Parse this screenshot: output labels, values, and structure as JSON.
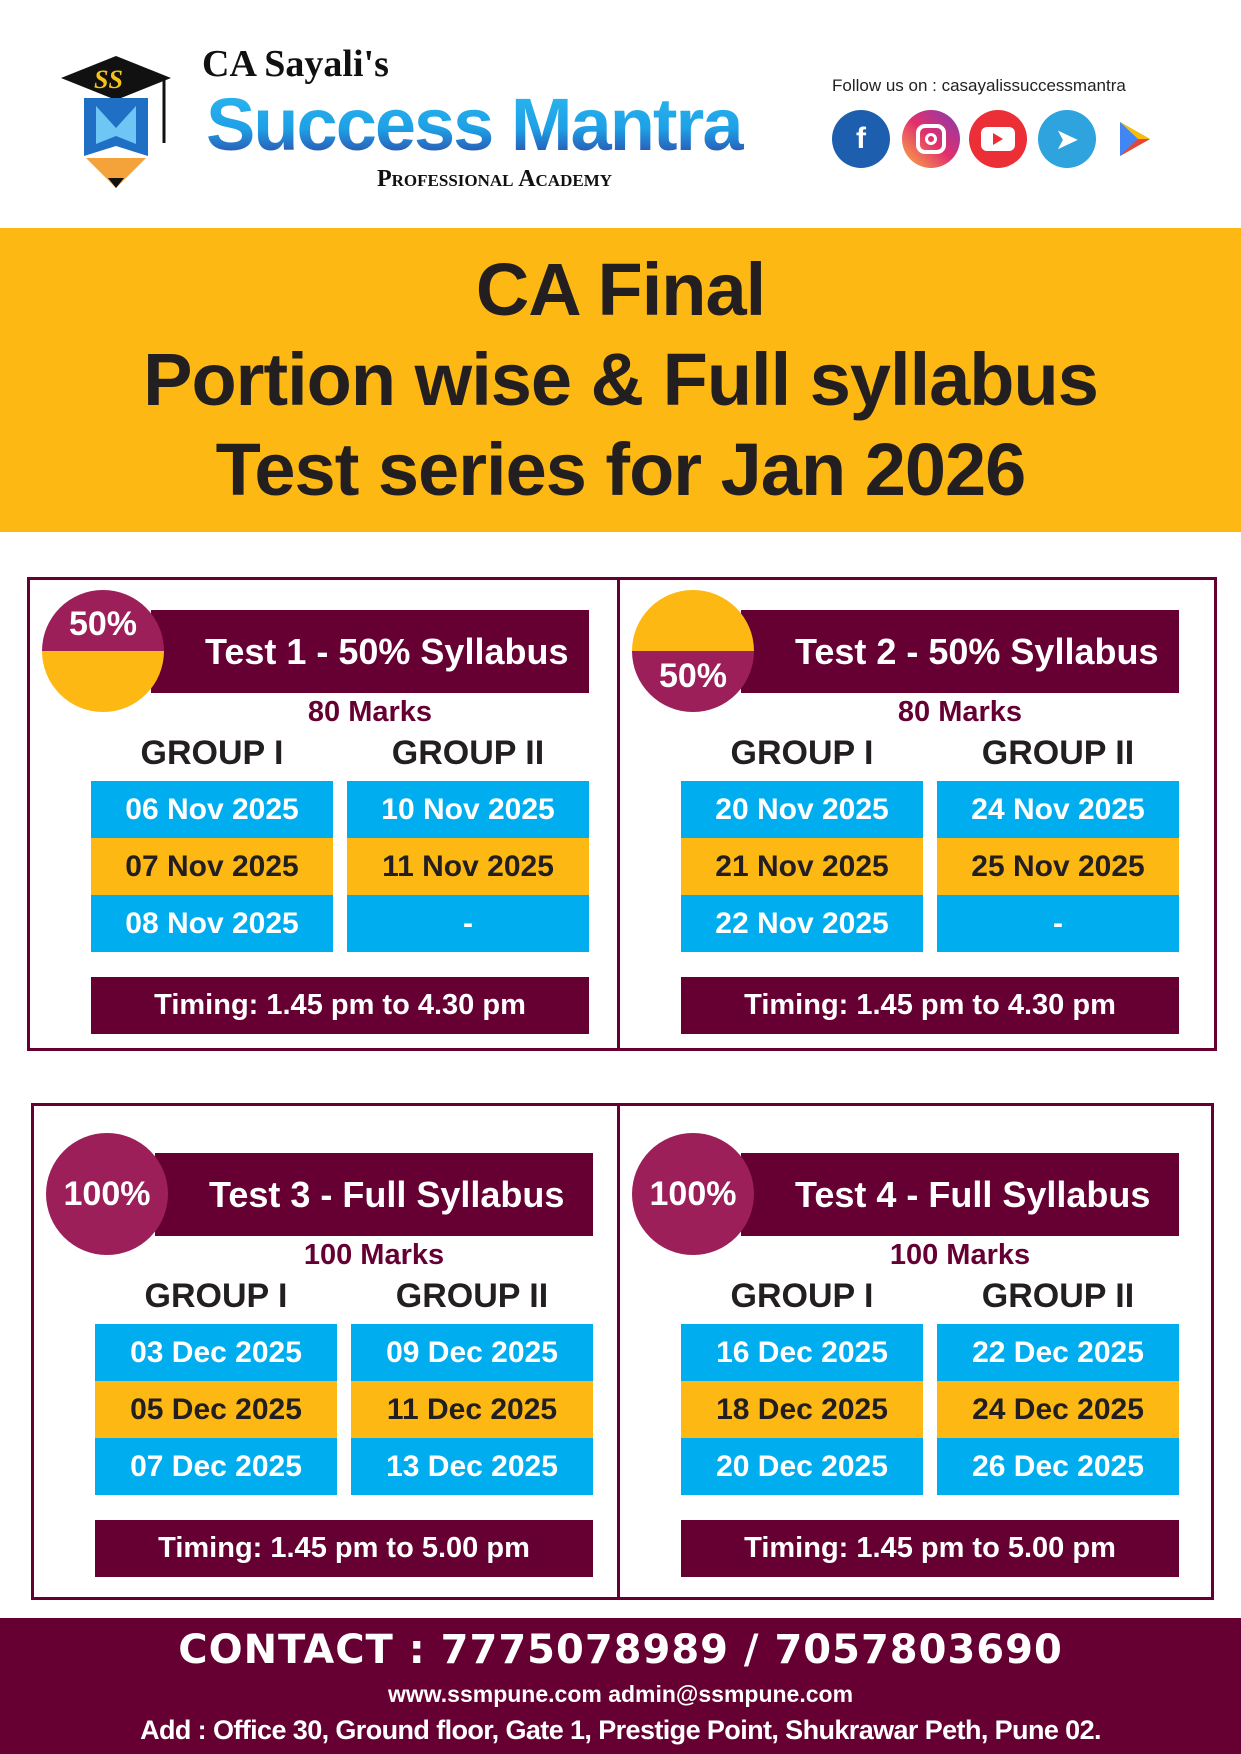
{
  "header": {
    "logo_monogram": "SS",
    "brand_prefix": "CA Sayali's",
    "brand_name": "Success Mantra",
    "brand_sub": "Professional Academy",
    "follow_text": "Follow us on : casayalissuccessmantra",
    "social_icons": [
      "facebook-icon",
      "instagram-icon",
      "youtube-icon",
      "telegram-icon",
      "play-store-icon"
    ]
  },
  "banner": {
    "line1": "CA Final",
    "line2": "Portion wise & Full syllabus",
    "line3": "Test series for Jan 2026"
  },
  "colors": {
    "maroon": "#660033",
    "magenta": "#9c1f5a",
    "yellow": "#fdb813",
    "blue": "#00aeef"
  },
  "tests": [
    {
      "badge": "50%",
      "title": "Test 1 - 50% Syllabus",
      "marks": "80 Marks",
      "group1": "GROUP I",
      "group2": "GROUP II",
      "group1_dates": [
        "06 Nov 2025",
        "07 Nov 2025",
        "08 Nov 2025"
      ],
      "group2_dates": [
        "10 Nov 2025",
        "11 Nov 2025",
        "-"
      ],
      "timing": "Timing: 1.45 pm to 4.30 pm"
    },
    {
      "badge": "50%",
      "title": "Test 2 - 50% Syllabus",
      "marks": "80 Marks",
      "group1": "GROUP I",
      "group2": "GROUP II",
      "group1_dates": [
        "20 Nov 2025",
        "21 Nov 2025",
        "22 Nov 2025"
      ],
      "group2_dates": [
        "24 Nov 2025",
        "25 Nov 2025",
        "-"
      ],
      "timing": "Timing: 1.45 pm to 4.30 pm"
    },
    {
      "badge": "100%",
      "title": "Test 3 - Full Syllabus",
      "marks": "100 Marks",
      "group1": "GROUP I",
      "group2": "GROUP II",
      "group1_dates": [
        "03 Dec 2025",
        "05 Dec 2025",
        "07 Dec 2025"
      ],
      "group2_dates": [
        "09 Dec 2025",
        "11 Dec 2025",
        "13 Dec 2025"
      ],
      "timing": "Timing: 1.45 pm to 5.00 pm"
    },
    {
      "badge": "100%",
      "title": "Test 4 - Full Syllabus",
      "marks": "100 Marks",
      "group1": "GROUP I",
      "group2": "GROUP II",
      "group1_dates": [
        "16 Dec 2025",
        "18 Dec 2025",
        "20 Dec 2025"
      ],
      "group2_dates": [
        "22 Dec 2025",
        "24 Dec 2025",
        "26 Dec 2025"
      ],
      "timing": "Timing: 1.45 pm to 5.00 pm"
    }
  ],
  "footer": {
    "contact": "CONTACT : 7775078989 / 7057803690",
    "web": "www.ssmpune.com  admin@ssmpune.com",
    "address": "Add : Office 30, Ground floor, Gate 1, Prestige Point,  Shukrawar Peth, Pune 02."
  }
}
